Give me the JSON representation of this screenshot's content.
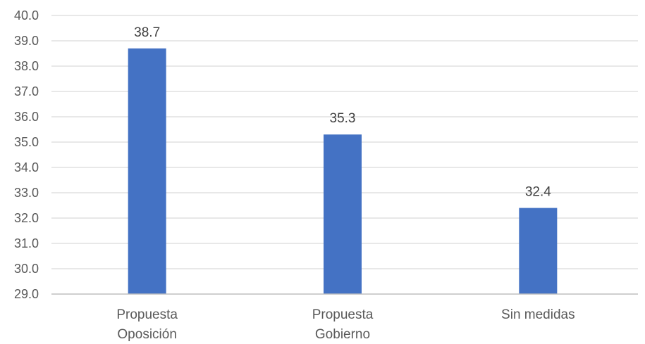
{
  "chart_data": {
    "type": "bar",
    "categories": [
      [
        "Propuesta",
        "Oposición"
      ],
      [
        "Propuesta",
        "Gobierno"
      ],
      [
        "Sin medidas"
      ]
    ],
    "values": [
      38.7,
      35.3,
      32.4
    ],
    "data_labels": [
      "38.7",
      "35.3",
      "32.4"
    ],
    "ylim": [
      29.0,
      40.0
    ],
    "y_ticks": [
      "29.0",
      "30.0",
      "31.0",
      "32.0",
      "33.0",
      "34.0",
      "35.0",
      "36.0",
      "37.0",
      "38.0",
      "39.0",
      "40.0"
    ],
    "title": "",
    "xlabel": "",
    "ylabel": "",
    "grid": true,
    "legend": "none",
    "colors": {
      "bar": "#4472C4",
      "grid": "#D9D9D9",
      "axis": "#BFBFBF"
    }
  }
}
